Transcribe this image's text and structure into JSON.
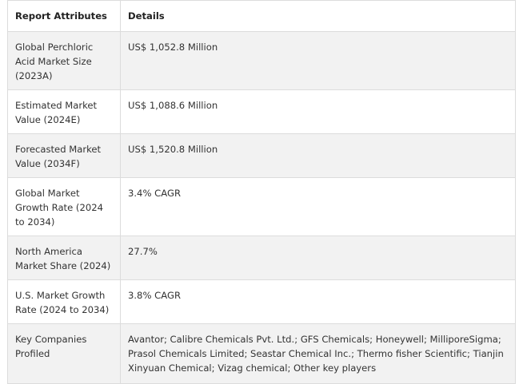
{
  "table": {
    "headers": [
      "Report Attributes",
      "Details"
    ],
    "rows": [
      {
        "attribute": "Global Perchloric Acid Market Size (2023A)",
        "detail": "US$ 1,052.8 Million"
      },
      {
        "attribute": "Estimated Market Value (2024E)",
        "detail": "US$ 1,088.6 Million"
      },
      {
        "attribute": "Forecasted Market Value (2034F)",
        "detail": "US$ 1,520.8 Million"
      },
      {
        "attribute": "Global Market Growth Rate (2024 to 2034)",
        "detail": "3.4% CAGR"
      },
      {
        "attribute": "North America Market Share (2024)",
        "detail": "27.7%"
      },
      {
        "attribute": "U.S. Market Growth Rate (2024 to 2034)",
        "detail": "3.8% CAGR"
      },
      {
        "attribute": "Key Companies Profiled",
        "detail": "Avantor; Calibre Chemicals Pvt. Ltd.; GFS Chemicals; Honeywell; MilliporeSigma; Prasol Chemicals Limited; Seastar Chemical Inc.; Thermo fisher Scientific; Tianjin Xinyuan Chemical; Vizag chemical; Other key players"
      }
    ]
  }
}
